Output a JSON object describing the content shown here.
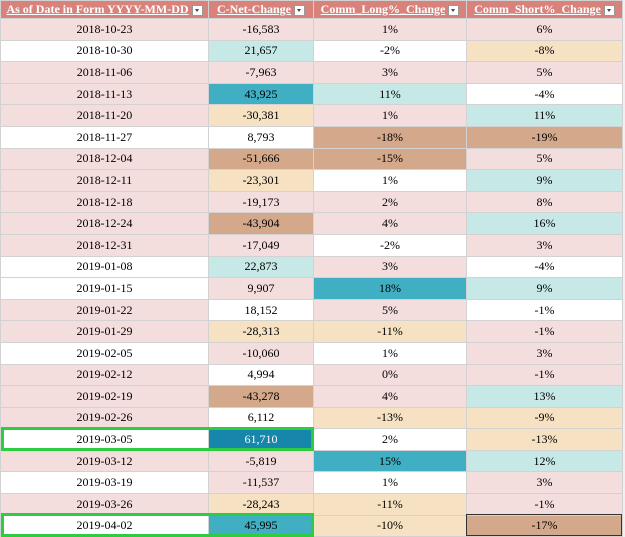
{
  "table": {
    "header": [
      "As of Date in Form YYYY-MM-DD",
      "C-Net-Change",
      "Comm_Long%_Change",
      "Comm_Short%_Change"
    ],
    "rows": [
      [
        "2018-10-23",
        "-16,583",
        "1%",
        "6%"
      ],
      [
        "2018-10-30",
        "21,657",
        "-2%",
        "-8%"
      ],
      [
        "2018-11-06",
        "-7,963",
        "3%",
        "5%"
      ],
      [
        "2018-11-13",
        "43,925",
        "11%",
        "-4%"
      ],
      [
        "2018-11-20",
        "-30,381",
        "1%",
        "11%"
      ],
      [
        "2018-11-27",
        "8,793",
        "-18%",
        "-19%"
      ],
      [
        "2018-12-04",
        "-51,666",
        "-15%",
        "5%"
      ],
      [
        "2018-12-11",
        "-23,301",
        "1%",
        "9%"
      ],
      [
        "2018-12-18",
        "-19,173",
        "2%",
        "8%"
      ],
      [
        "2018-12-24",
        "-43,904",
        "4%",
        "16%"
      ],
      [
        "2018-12-31",
        "-17,049",
        "-2%",
        "3%"
      ],
      [
        "2019-01-08",
        "22,873",
        "3%",
        "-4%"
      ],
      [
        "2019-01-15",
        "9,907",
        "18%",
        "9%"
      ],
      [
        "2019-01-22",
        "18,152",
        "5%",
        "-1%"
      ],
      [
        "2019-01-29",
        "-28,313",
        "-11%",
        "-1%"
      ],
      [
        "2019-02-05",
        "-10,060",
        "1%",
        "3%"
      ],
      [
        "2019-02-12",
        "4,994",
        "0%",
        "-1%"
      ],
      [
        "2019-02-19",
        "-43,278",
        "4%",
        "13%"
      ],
      [
        "2019-02-26",
        "6,112",
        "-13%",
        "-9%"
      ],
      [
        "2019-03-05",
        "61,710",
        "2%",
        "-13%"
      ],
      [
        "2019-03-12",
        "-5,819",
        "15%",
        "12%"
      ],
      [
        "2019-03-19",
        "-11,537",
        "1%",
        "3%"
      ],
      [
        "2019-03-26",
        "-28,243",
        "-11%",
        "-1%"
      ],
      [
        "2019-04-02",
        "45,995",
        "-10%",
        "-17%"
      ]
    ],
    "fills": [
      [
        "p",
        "p",
        "p",
        "p"
      ],
      [
        "w",
        "t",
        "w",
        "b"
      ],
      [
        "p",
        "p",
        "p",
        "p"
      ],
      [
        "p",
        "T",
        "t",
        "w"
      ],
      [
        "p",
        "b",
        "p",
        "t"
      ],
      [
        "w",
        "w",
        "B",
        "B"
      ],
      [
        "p",
        "B",
        "B",
        "p"
      ],
      [
        "p",
        "b",
        "w",
        "t"
      ],
      [
        "p",
        "p",
        "p",
        "p"
      ],
      [
        "p",
        "B",
        "p",
        "t"
      ],
      [
        "p",
        "p",
        "w",
        "p"
      ],
      [
        "w",
        "t",
        "p",
        "w"
      ],
      [
        "w",
        "p",
        "T",
        "t"
      ],
      [
        "p",
        "w",
        "p",
        "w"
      ],
      [
        "p",
        "b",
        "b",
        "p"
      ],
      [
        "w",
        "p",
        "w",
        "p"
      ],
      [
        "p",
        "w",
        "p",
        "p"
      ],
      [
        "p",
        "B",
        "p",
        "t"
      ],
      [
        "p",
        "w",
        "b",
        "b"
      ],
      [
        "w",
        "D",
        "w",
        "b"
      ],
      [
        "p",
        "p",
        "T",
        "t"
      ],
      [
        "w",
        "p",
        "w",
        "p"
      ],
      [
        "p",
        "b",
        "b",
        "p"
      ],
      [
        "w",
        "T",
        "b",
        "B"
      ]
    ],
    "fill_colors": {
      "p": "#f4dedd",
      "w": "#ffffff",
      "t": "#c6e8e6",
      "T": "#41afc3",
      "D": "#1687aa",
      "b": "#f6e1c2",
      "B": "#d4a98b"
    }
  }
}
